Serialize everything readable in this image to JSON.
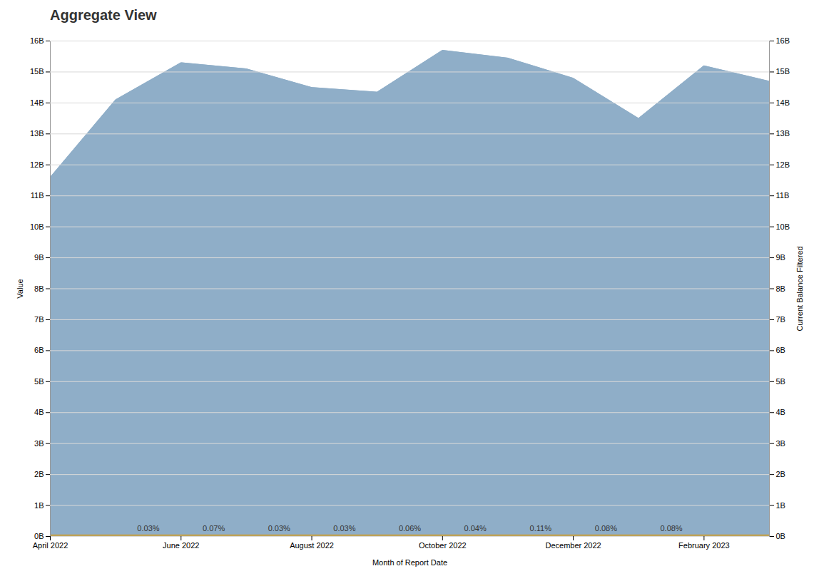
{
  "chart_data": {
    "type": "area",
    "title": "Aggregate View",
    "x_label": "Month of Report Date",
    "y_label": "Value",
    "y2_label": "Current Balance Filtered",
    "categories": [
      "April 2022",
      null,
      "June 2022",
      null,
      "August 2022",
      null,
      "October 2022",
      null,
      "December 2022",
      null,
      "February 2023",
      null
    ],
    "values": [
      11.6,
      14.1,
      15.3,
      15.1,
      14.5,
      14.35,
      15.7,
      15.45,
      14.8,
      13.5,
      15.2,
      14.7
    ],
    "color": "#8faec8",
    "ylim": [
      0,
      16
    ],
    "yticks": [
      {
        "value": 0,
        "label": "0B"
      },
      {
        "value": 1,
        "label": "1B"
      },
      {
        "value": 2,
        "label": "2B"
      },
      {
        "value": 3,
        "label": "3B"
      },
      {
        "value": 4,
        "label": "4B"
      },
      {
        "value": 5,
        "label": "5B"
      },
      {
        "value": 6,
        "label": "6B"
      },
      {
        "value": 7,
        "label": "7B"
      },
      {
        "value": 8,
        "label": "8B"
      },
      {
        "value": 9,
        "label": "9B"
      },
      {
        "value": 10,
        "label": "10B"
      },
      {
        "value": 11,
        "label": "11B"
      },
      {
        "value": 12,
        "label": "12B"
      },
      {
        "value": 13,
        "label": "13B"
      },
      {
        "value": 14,
        "label": "14B"
      },
      {
        "value": 15,
        "label": "15B"
      },
      {
        "value": 16,
        "label": "16B"
      }
    ],
    "y2lim": [
      0,
      16
    ],
    "y2ticks": [
      {
        "value": 0,
        "label": "0B"
      },
      {
        "value": 1,
        "label": "1B"
      },
      {
        "value": 2,
        "label": "2B"
      },
      {
        "value": 3,
        "label": "3B"
      },
      {
        "value": 4,
        "label": "4B"
      },
      {
        "value": 5,
        "label": "5B"
      },
      {
        "value": 6,
        "label": "6B"
      },
      {
        "value": 7,
        "label": "7B"
      },
      {
        "value": 8,
        "label": "8B"
      },
      {
        "value": 9,
        "label": "9B"
      },
      {
        "value": 10,
        "label": "10B"
      },
      {
        "value": 11,
        "label": "11B"
      },
      {
        "value": 12,
        "label": "12B"
      },
      {
        "value": 13,
        "label": "13B"
      },
      {
        "value": 14,
        "label": "14B"
      },
      {
        "value": 15,
        "label": "15B"
      },
      {
        "value": 16,
        "label": "16B"
      }
    ],
    "grid": true,
    "reference_lines": [
      {
        "y": 0.04,
        "color": "#c8a040"
      }
    ],
    "annotations": [
      {
        "x": 1.5,
        "y": 0.18,
        "text": "0.03%"
      },
      {
        "x": 2.5,
        "y": 0.18,
        "text": "0.07%"
      },
      {
        "x": 3.5,
        "y": 0.18,
        "text": "0.03%"
      },
      {
        "x": 4.5,
        "y": 0.18,
        "text": "0.03%"
      },
      {
        "x": 5.5,
        "y": 0.18,
        "text": "0.06%"
      },
      {
        "x": 6.5,
        "y": 0.18,
        "text": "0.04%"
      },
      {
        "x": 7.5,
        "y": 0.18,
        "text": "0.11%"
      },
      {
        "x": 8.5,
        "y": 0.18,
        "text": "0.08%"
      },
      {
        "x": 9.5,
        "y": 0.18,
        "text": "0.08%"
      }
    ]
  }
}
